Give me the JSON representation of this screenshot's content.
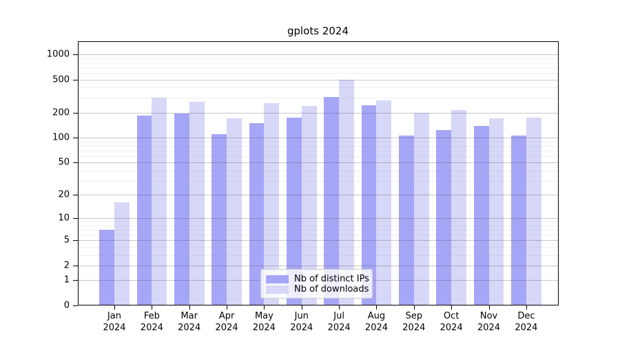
{
  "title": "gplots 2024",
  "chart_data": {
    "type": "bar",
    "title": "gplots 2024",
    "scale": "log1p",
    "xlabel": "",
    "ylabel": "",
    "categories": [
      "Jan",
      "Feb",
      "Mar",
      "Apr",
      "May",
      "Jun",
      "Jul",
      "Aug",
      "Sep",
      "Oct",
      "Nov",
      "Dec"
    ],
    "category_year": "2024",
    "series": [
      {
        "name": "Nb of distinct IPs",
        "color": "#a6a6f7",
        "values": [
          7,
          185,
          195,
          110,
          150,
          175,
          310,
          245,
          107,
          123,
          140,
          107
        ]
      },
      {
        "name": "Nb of downloads",
        "color": "#d7d7f8",
        "values": [
          16,
          300,
          270,
          170,
          260,
          240,
          500,
          280,
          198,
          215,
          170,
          175
        ]
      }
    ],
    "yticks": [
      0,
      1,
      2,
      5,
      10,
      20,
      50,
      100,
      200,
      500,
      1000
    ],
    "minor_yticks": [
      3,
      4,
      6,
      7,
      8,
      9,
      30,
      40,
      60,
      70,
      80,
      90,
      300,
      400,
      600,
      700,
      800,
      900
    ],
    "ylim": [
      0,
      1400
    ],
    "grid": "on",
    "legend_position": "bottom-center"
  }
}
